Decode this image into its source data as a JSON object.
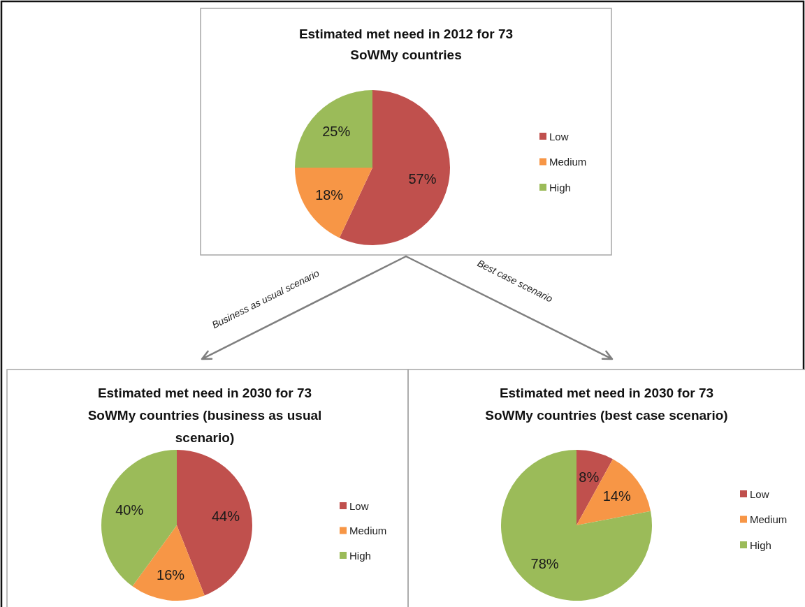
{
  "chart_data": [
    {
      "type": "pie",
      "title": "Estimated met need in 2012 for 73 SoWMy countries",
      "categories": [
        "Low",
        "Medium",
        "High"
      ],
      "values": [
        57,
        18,
        25
      ],
      "colors": [
        "#c0504d",
        "#f79646",
        "#9bbb59"
      ],
      "value_labels": [
        "57%",
        "18%",
        "25%"
      ],
      "legend": "right",
      "annotations": [
        "Business as usual scenario",
        "Best case scenario"
      ]
    },
    {
      "type": "pie",
      "title": "Estimated met need in 2030 for 73 SoWMy countries (business as usual scenario)",
      "categories": [
        "Low",
        "Medium",
        "High"
      ],
      "values": [
        44,
        16,
        40
      ],
      "colors": [
        "#c0504d",
        "#f79646",
        "#9bbb59"
      ],
      "value_labels": [
        "44%",
        "16%",
        "40%"
      ],
      "legend": "right"
    },
    {
      "type": "pie",
      "title": "Estimated met need in 2030 for 73 SoWMy countries (best case scenario)",
      "categories": [
        "Low",
        "Medium",
        "High"
      ],
      "values": [
        8,
        14,
        78
      ],
      "colors": [
        "#c0504d",
        "#f79646",
        "#9bbb59"
      ],
      "value_labels": [
        "8%",
        "14%",
        "78%"
      ],
      "legend": "right"
    }
  ]
}
